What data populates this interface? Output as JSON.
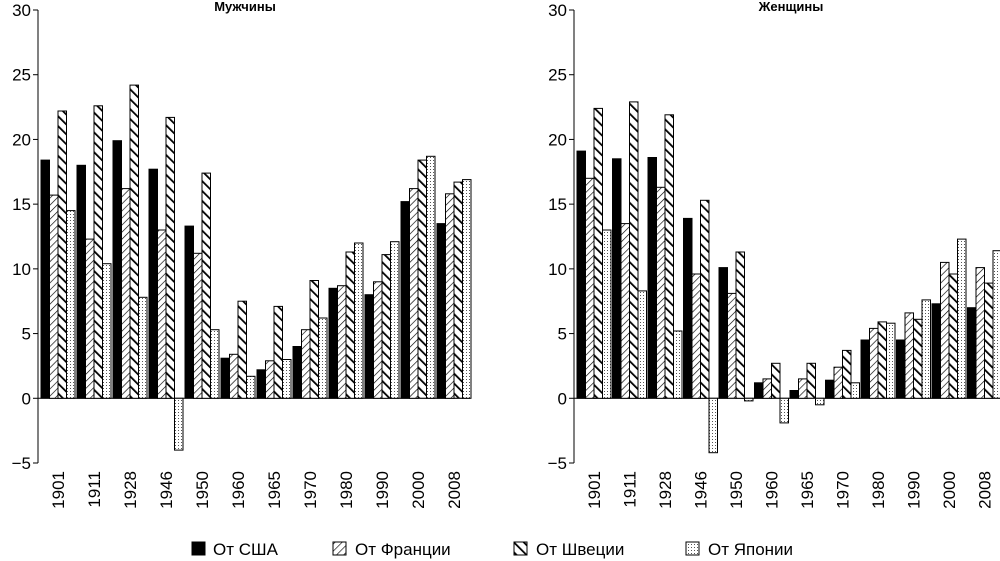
{
  "chart_data": [
    {
      "type": "bar",
      "title": "Мужчины",
      "categories": [
        "1901",
        "1911",
        "1928",
        "1946",
        "1950",
        "1960",
        "1965",
        "1970",
        "1980",
        "1990",
        "2000",
        "2008"
      ],
      "ylim": [
        -5,
        30
      ],
      "yticks": [
        "−5",
        "0",
        "5",
        "10",
        "15",
        "20",
        "25",
        "30"
      ],
      "grid": false,
      "series": [
        {
          "name": "От США",
          "values": [
            18.4,
            18.0,
            19.9,
            17.7,
            13.3,
            3.1,
            2.2,
            4.0,
            8.5,
            8.0,
            15.2,
            13.5
          ]
        },
        {
          "name": "От Франции",
          "values": [
            15.7,
            12.3,
            16.2,
            13.0,
            11.2,
            3.4,
            2.9,
            5.3,
            8.7,
            9.0,
            16.2,
            15.8
          ]
        },
        {
          "name": "От Швеции",
          "values": [
            22.2,
            22.6,
            24.2,
            21.7,
            17.4,
            7.5,
            7.1,
            9.1,
            11.3,
            11.1,
            18.4,
            16.7
          ]
        },
        {
          "name": "От Японии",
          "values": [
            14.5,
            10.4,
            7.8,
            -4.0,
            5.3,
            1.7,
            3.0,
            6.2,
            12.0,
            12.1,
            18.7,
            16.9
          ]
        }
      ]
    },
    {
      "type": "bar",
      "title": "Женщины",
      "categories": [
        "1901",
        "1911",
        "1928",
        "1946",
        "1950",
        "1960",
        "1965",
        "1970",
        "1980",
        "1990",
        "2000",
        "2008"
      ],
      "ylim": [
        -5,
        30
      ],
      "yticks": [
        "−5",
        "0",
        "5",
        "10",
        "15",
        "20",
        "25",
        "30"
      ],
      "grid": false,
      "series": [
        {
          "name": "От США",
          "values": [
            19.1,
            18.5,
            18.6,
            13.9,
            10.1,
            1.2,
            0.6,
            1.4,
            4.5,
            4.5,
            7.3,
            7.0
          ]
        },
        {
          "name": "От Франции",
          "values": [
            17.0,
            13.5,
            16.3,
            9.6,
            8.1,
            1.5,
            1.5,
            2.4,
            5.4,
            6.6,
            10.5,
            10.1
          ]
        },
        {
          "name": "От Швеции",
          "values": [
            22.4,
            22.9,
            21.9,
            15.3,
            11.3,
            2.7,
            2.7,
            3.7,
            5.9,
            6.1,
            9.6,
            8.9
          ]
        },
        {
          "name": "От Японии",
          "values": [
            13.0,
            8.3,
            5.2,
            -4.2,
            -0.2,
            -1.9,
            -0.5,
            1.2,
            5.8,
            7.6,
            12.3,
            11.4
          ]
        }
      ]
    }
  ],
  "legend": {
    "position": "bottom",
    "items": [
      {
        "label": "От США",
        "pattern": "solid"
      },
      {
        "label": "От Франции",
        "pattern": "thin-diagonal"
      },
      {
        "label": "От Швеции",
        "pattern": "thick-diagonal"
      },
      {
        "label": "От Японии",
        "pattern": "dotted"
      }
    ]
  },
  "colors": {
    "ink": "#000000",
    "background": "#ffffff",
    "dots": "#555555"
  }
}
